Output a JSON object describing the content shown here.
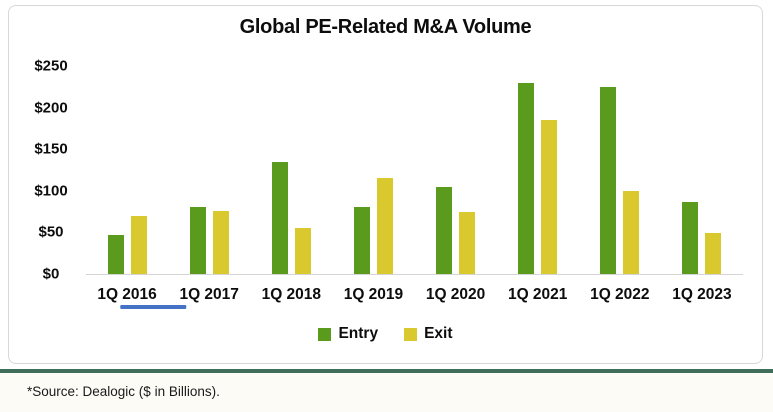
{
  "title": "Global PE-Related M&A Volume",
  "source_note": "*Source: Dealogic ($ in Billions).",
  "legend": {
    "entry_label": "Entry",
    "exit_label": "Exit"
  },
  "colors": {
    "entry": "#5a9a1c",
    "exit": "#d9c92f",
    "annotation_underline": "#4472c4",
    "divider": "#3f6e5c",
    "axis_line": "#d4d4d4",
    "box_border": "#d8d8d8"
  },
  "chart_data": {
    "type": "bar",
    "title": "Global PE-Related M&A Volume",
    "categories": [
      "1Q 2016",
      "1Q 2017",
      "1Q 2018",
      "1Q 2019",
      "1Q 2020",
      "1Q 2021",
      "1Q 2022",
      "1Q 2023"
    ],
    "series": [
      {
        "name": "Entry",
        "color": "#5a9a1c",
        "values": [
          47,
          80,
          135,
          80,
          105,
          230,
          225,
          86
        ]
      },
      {
        "name": "Exit",
        "color": "#d9c92f",
        "values": [
          70,
          76,
          55,
          115,
          75,
          185,
          100,
          49
        ]
      }
    ],
    "xlabel": "",
    "ylabel": "",
    "ylim": [
      0,
      250
    ],
    "yticks": [
      0,
      50,
      100,
      150,
      200,
      250
    ],
    "ytick_labels": [
      "$0",
      "$50",
      "$100",
      "$150",
      "$200",
      "$250"
    ],
    "grid": false,
    "legend_position": "bottom",
    "annotation": {
      "type": "underline",
      "under_category": "1Q 2016",
      "color": "#4472c4"
    },
    "units": "$ in Billions"
  }
}
